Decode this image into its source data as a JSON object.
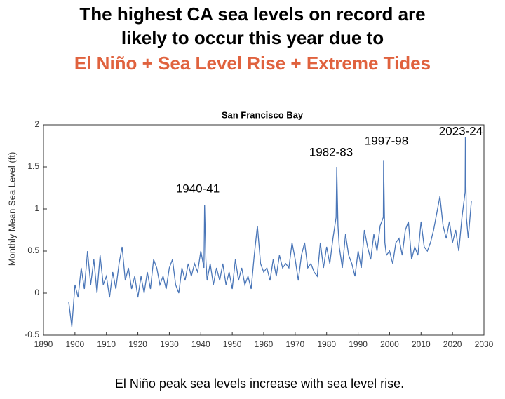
{
  "header": {
    "title": [
      "The highest CA sea levels on record are",
      "likely to occur this year due to"
    ],
    "subtitle": "El Niño + Sea Level Rise + Extreme Tides"
  },
  "chart_data": {
    "type": "line",
    "title": "San Francisco Bay",
    "y_label": "Monthly Mean Sea Level (ft)",
    "color": "#4a76b8",
    "xlim": [
      1890,
      2030
    ],
    "xticks": [
      1890,
      1900,
      1910,
      1920,
      1930,
      1940,
      1950,
      1960,
      1970,
      1980,
      1990,
      2000,
      2010,
      2020,
      2030
    ],
    "ylim": [
      -0.5,
      2
    ],
    "yticks": [
      -0.5,
      0,
      0.5,
      1,
      1.5,
      2
    ],
    "grid": false,
    "annotations": [
      "1940-41",
      "1982-83",
      "1997-98",
      "2023-24"
    ],
    "x": [
      1898,
      1899,
      1900,
      1901,
      1902,
      1903,
      1904,
      1905,
      1906,
      1907,
      1908,
      1909,
      1910,
      1911,
      1912,
      1913,
      1914,
      1915,
      1916,
      1917,
      1918,
      1919,
      1920,
      1921,
      1922,
      1923,
      1924,
      1925,
      1926,
      1927,
      1928,
      1929,
      1930,
      1931,
      1932,
      1933,
      1934,
      1935,
      1936,
      1937,
      1938,
      1939,
      1940,
      1941,
      1941.2,
      1941.6,
      1942,
      1943,
      1944,
      1945,
      1946,
      1947,
      1948,
      1949,
      1950,
      1951,
      1952,
      1953,
      1954,
      1955,
      1956,
      1957,
      1958,
      1959,
      1960,
      1961,
      1962,
      1963,
      1964,
      1965,
      1966,
      1967,
      1968,
      1969,
      1970,
      1971,
      1972,
      1973,
      1974,
      1975,
      1976,
      1977,
      1978,
      1979,
      1980,
      1981,
      1982,
      1983,
      1983.2,
      1983.6,
      1984,
      1985,
      1986,
      1987,
      1988,
      1989,
      1990,
      1991,
      1992,
      1993,
      1994,
      1995,
      1996,
      1997,
      1998,
      1998.1,
      1998.5,
      1999,
      2000,
      2001,
      2002,
      2003,
      2004,
      2005,
      2006,
      2007,
      2008,
      2009,
      2010,
      2011,
      2012,
      2013,
      2014,
      2015,
      2016,
      2017,
      2018,
      2019,
      2020,
      2021,
      2022,
      2023,
      2024,
      2024.1,
      2024.4,
      2025,
      2026
    ],
    "values": [
      -0.1,
      -0.4,
      0.1,
      -0.05,
      0.3,
      0.05,
      0.5,
      0.1,
      0.4,
      0,
      0.45,
      0.1,
      0.2,
      -0.05,
      0.25,
      0.05,
      0.35,
      0.55,
      0.15,
      0.3,
      0.05,
      0.2,
      -0.05,
      0.2,
      0,
      0.25,
      0.05,
      0.4,
      0.3,
      0.1,
      0.2,
      0.05,
      0.3,
      0.4,
      0.1,
      0,
      0.3,
      0.15,
      0.35,
      0.2,
      0.35,
      0.25,
      0.5,
      0.3,
      1.05,
      0.4,
      0.15,
      0.35,
      0.1,
      0.3,
      0.15,
      0.35,
      0.1,
      0.25,
      0.05,
      0.4,
      0.15,
      0.3,
      0.1,
      0.2,
      0.05,
      0.45,
      0.8,
      0.35,
      0.25,
      0.3,
      0.15,
      0.4,
      0.2,
      0.45,
      0.3,
      0.35,
      0.3,
      0.6,
      0.4,
      0.15,
      0.45,
      0.6,
      0.3,
      0.35,
      0.25,
      0.2,
      0.6,
      0.3,
      0.55,
      0.35,
      0.65,
      0.9,
      1.5,
      0.8,
      0.55,
      0.3,
      0.7,
      0.45,
      0.35,
      0.2,
      0.5,
      0.3,
      0.75,
      0.55,
      0.4,
      0.7,
      0.5,
      0.8,
      0.9,
      1.58,
      0.6,
      0.45,
      0.5,
      0.35,
      0.6,
      0.65,
      0.45,
      0.75,
      0.85,
      0.4,
      0.55,
      0.45,
      0.85,
      0.55,
      0.5,
      0.6,
      0.75,
      0.95,
      1.15,
      0.8,
      0.65,
      0.85,
      0.6,
      0.75,
      0.5,
      0.9,
      1.2,
      1.85,
      0.9,
      0.65,
      1.1
    ]
  },
  "caption": "El Niño peak sea levels increase with sea level rise."
}
